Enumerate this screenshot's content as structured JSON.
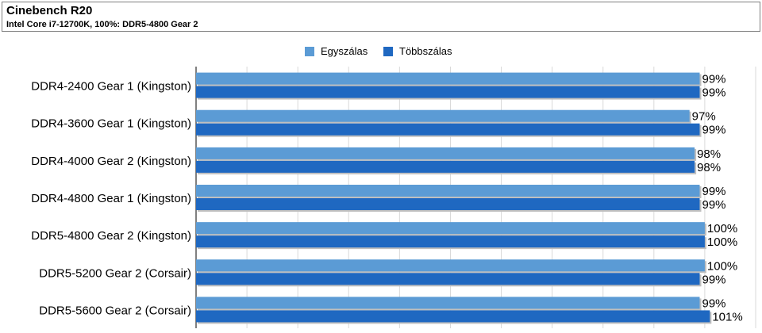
{
  "chart_data": {
    "type": "bar",
    "title": "Cinebench R20",
    "subtitle": "Intel Core i7-12700K, 100%: DDR5-4800 Gear 2",
    "categories": [
      "DDR4-2400 Gear 1 (Kingston)",
      "DDR4-3600 Gear 1 (Kingston)",
      "DDR4-4000 Gear 2 (Kingston)",
      "DDR4-4800 Gear 1 (Kingston)",
      "DDR5-4800 Gear 2 (Kingston)",
      "DDR5-5200 Gear 2 (Corsair)",
      "DDR5-5600 Gear 2 (Corsair)"
    ],
    "series": [
      {
        "name": "Egyszálas",
        "color": "#5b9bd5",
        "values": [
          99,
          97,
          98,
          99,
          100,
          100,
          99
        ]
      },
      {
        "name": "Többszálas",
        "color": "#1f68c1",
        "values": [
          99,
          99,
          98,
          99,
          100,
          99,
          101
        ]
      }
    ],
    "value_suffix": "%",
    "orientation": "horizontal",
    "xlim": [
      0,
      110
    ],
    "grid": true,
    "legend_position": "top-center"
  }
}
